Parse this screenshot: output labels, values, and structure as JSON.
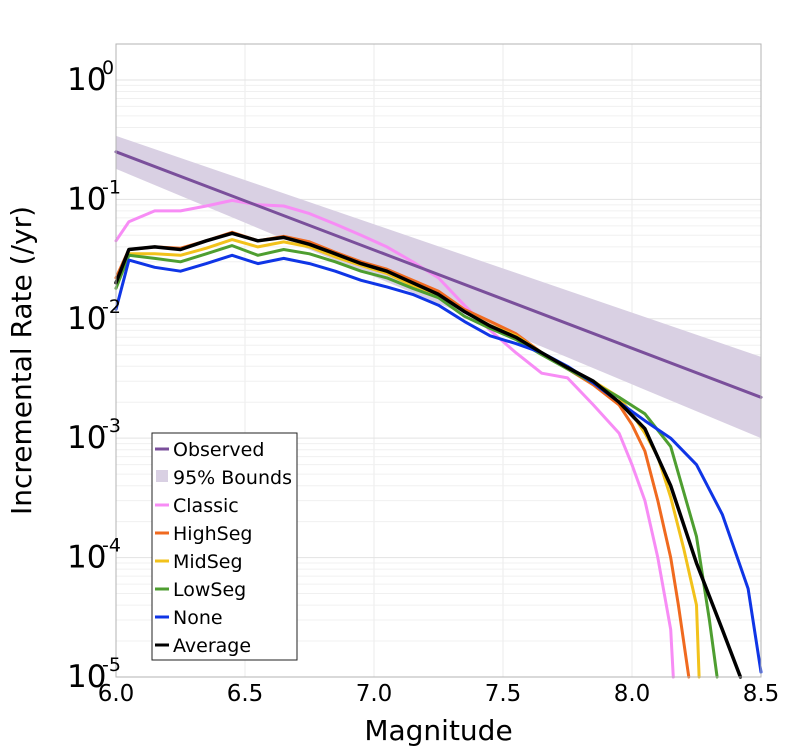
{
  "chart_data": {
    "type": "line",
    "xlabel": "Magnitude",
    "ylabel": "Incremental Rate (/yr)",
    "xlim": [
      6.0,
      8.5
    ],
    "ylim": [
      1e-05,
      2
    ],
    "yscale": "log",
    "grid": true,
    "legend_position": "lower-left",
    "x_ticks": [
      "6.0",
      "6.5",
      "7.0",
      "7.5",
      "8.0",
      "8.5"
    ],
    "y_ticks": [
      {
        "value": 1,
        "base": "10",
        "exp": "0"
      },
      {
        "value": 0.1,
        "base": "10",
        "exp": "-1"
      },
      {
        "value": 0.01,
        "base": "10",
        "exp": "-2"
      },
      {
        "value": 0.001,
        "base": "10",
        "exp": "-3"
      },
      {
        "value": 0.0001,
        "base": "10",
        "exp": "-4"
      },
      {
        "value": 1e-05,
        "base": "10",
        "exp": "-5"
      }
    ],
    "bounds": {
      "name": "95% Bounds",
      "color": "#d9d0e3",
      "x": [
        6.0,
        8.5
      ],
      "lower": [
        0.18,
        0.001
      ],
      "upper": [
        0.34,
        0.0048
      ]
    },
    "series": [
      {
        "name": "Observed",
        "color": "#7a4f9b",
        "width": 3,
        "x": [
          6.0,
          8.5
        ],
        "y": [
          0.25,
          0.0022
        ]
      },
      {
        "name": "Classic",
        "color": "#f78cf5",
        "width": 3,
        "x": [
          6.0,
          6.05,
          6.15,
          6.25,
          6.35,
          6.45,
          6.55,
          6.65,
          6.75,
          6.85,
          6.95,
          7.05,
          7.15,
          7.25,
          7.35,
          7.45,
          7.55,
          7.65,
          7.75,
          7.85,
          7.95,
          8.0,
          8.05,
          8.1,
          8.15,
          8.16
        ],
        "y": [
          0.045,
          0.065,
          0.08,
          0.08,
          0.088,
          0.098,
          0.09,
          0.088,
          0.076,
          0.062,
          0.05,
          0.04,
          0.03,
          0.022,
          0.013,
          0.008,
          0.0052,
          0.0035,
          0.0032,
          0.0019,
          0.0011,
          0.0006,
          0.0003,
          0.0001,
          2.5e-05,
          1e-05
        ]
      },
      {
        "name": "HighSeg",
        "color": "#f06a1f",
        "width": 3,
        "x": [
          6.0,
          6.05,
          6.15,
          6.25,
          6.35,
          6.45,
          6.55,
          6.65,
          6.75,
          6.85,
          6.95,
          7.05,
          7.15,
          7.25,
          7.35,
          7.45,
          7.55,
          7.65,
          7.75,
          7.85,
          7.95,
          8.0,
          8.05,
          8.1,
          8.15,
          8.18,
          8.22
        ],
        "y": [
          0.022,
          0.038,
          0.04,
          0.039,
          0.045,
          0.053,
          0.045,
          0.049,
          0.044,
          0.036,
          0.03,
          0.026,
          0.021,
          0.017,
          0.012,
          0.0095,
          0.0075,
          0.0052,
          0.0038,
          0.0028,
          0.0019,
          0.0013,
          0.00078,
          0.0003,
          0.0001,
          4e-05,
          1e-05
        ]
      },
      {
        "name": "MidSeg",
        "color": "#f2c21b",
        "width": 3,
        "x": [
          6.0,
          6.05,
          6.15,
          6.25,
          6.35,
          6.45,
          6.55,
          6.65,
          6.75,
          6.85,
          6.95,
          7.05,
          7.15,
          7.25,
          7.35,
          7.45,
          7.55,
          7.65,
          7.75,
          7.85,
          7.95,
          8.0,
          8.05,
          8.1,
          8.15,
          8.2,
          8.25,
          8.26
        ],
        "y": [
          0.02,
          0.035,
          0.035,
          0.034,
          0.039,
          0.046,
          0.04,
          0.044,
          0.04,
          0.033,
          0.028,
          0.024,
          0.019,
          0.016,
          0.0115,
          0.0088,
          0.0072,
          0.0052,
          0.0039,
          0.003,
          0.0022,
          0.0016,
          0.0011,
          0.0007,
          0.00032,
          0.00012,
          4e-05,
          1e-05
        ]
      },
      {
        "name": "LowSeg",
        "color": "#4e9e30",
        "width": 3,
        "x": [
          6.0,
          6.05,
          6.15,
          6.25,
          6.35,
          6.45,
          6.55,
          6.65,
          6.75,
          6.85,
          6.95,
          7.05,
          7.15,
          7.25,
          7.35,
          7.45,
          7.55,
          7.65,
          7.75,
          7.85,
          7.95,
          8.05,
          8.15,
          8.25,
          8.3,
          8.33
        ],
        "y": [
          0.018,
          0.034,
          0.032,
          0.03,
          0.035,
          0.041,
          0.034,
          0.038,
          0.035,
          0.03,
          0.025,
          0.022,
          0.018,
          0.015,
          0.0105,
          0.0083,
          0.0067,
          0.005,
          0.0038,
          0.0029,
          0.0022,
          0.0016,
          0.00085,
          0.00015,
          3e-05,
          1e-05
        ]
      },
      {
        "name": "None",
        "color": "#0f35e6",
        "width": 3,
        "x": [
          6.0,
          6.05,
          6.15,
          6.25,
          6.35,
          6.45,
          6.55,
          6.65,
          6.75,
          6.85,
          6.95,
          7.05,
          7.15,
          7.25,
          7.35,
          7.45,
          7.55,
          7.65,
          7.75,
          7.85,
          7.95,
          8.05,
          8.15,
          8.25,
          8.35,
          8.45,
          8.5
        ],
        "y": [
          0.012,
          0.031,
          0.027,
          0.025,
          0.029,
          0.034,
          0.029,
          0.032,
          0.029,
          0.025,
          0.021,
          0.0185,
          0.016,
          0.013,
          0.0095,
          0.0072,
          0.0062,
          0.0052,
          0.004,
          0.0029,
          0.002,
          0.0014,
          0.001,
          0.0006,
          0.00023,
          5.5e-05,
          1.1e-05
        ]
      },
      {
        "name": "Average",
        "color": "#000000",
        "width": 3.5,
        "x": [
          6.0,
          6.05,
          6.15,
          6.25,
          6.35,
          6.45,
          6.55,
          6.65,
          6.75,
          6.85,
          6.95,
          7.05,
          7.15,
          7.25,
          7.35,
          7.45,
          7.55,
          7.65,
          7.75,
          7.85,
          7.95,
          8.05,
          8.15,
          8.25,
          8.35,
          8.42
        ],
        "y": [
          0.02,
          0.038,
          0.04,
          0.038,
          0.045,
          0.052,
          0.045,
          0.048,
          0.042,
          0.035,
          0.029,
          0.025,
          0.02,
          0.016,
          0.0115,
          0.0087,
          0.007,
          0.0052,
          0.0039,
          0.003,
          0.002,
          0.0012,
          0.0004,
          9e-05,
          2.5e-05,
          1e-05
        ]
      }
    ],
    "legend": [
      {
        "label": "Observed",
        "kind": "line",
        "color": "#7a4f9b"
      },
      {
        "label": "95% Bounds",
        "kind": "patch",
        "color": "#d9d0e3"
      },
      {
        "label": "Classic",
        "kind": "line",
        "color": "#f78cf5"
      },
      {
        "label": "HighSeg",
        "kind": "line",
        "color": "#f06a1f"
      },
      {
        "label": "MidSeg",
        "kind": "line",
        "color": "#f2c21b"
      },
      {
        "label": "LowSeg",
        "kind": "line",
        "color": "#4e9e30"
      },
      {
        "label": "None",
        "kind": "line",
        "color": "#0f35e6"
      },
      {
        "label": "Average",
        "kind": "line",
        "color": "#000000"
      }
    ]
  }
}
